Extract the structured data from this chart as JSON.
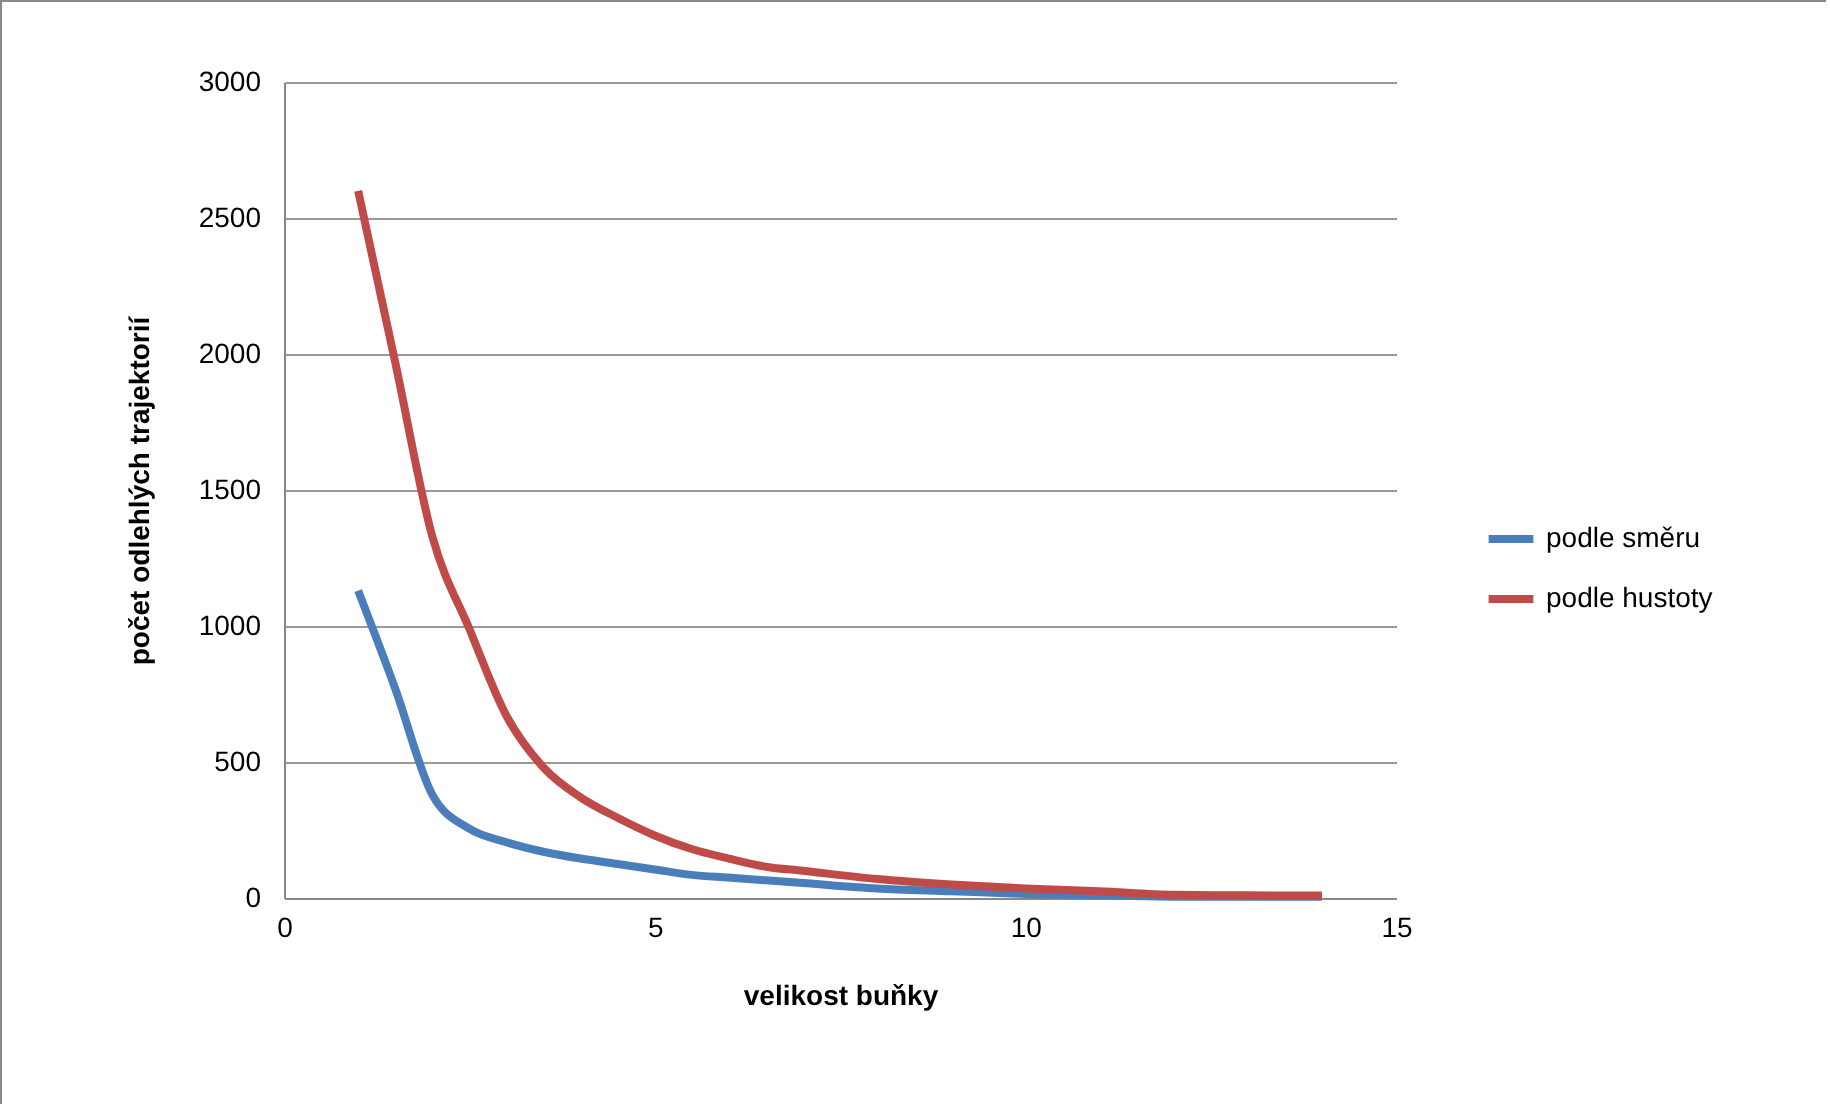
{
  "chart_data": {
    "type": "line",
    "xlabel": "velikost buňky",
    "ylabel": "počet odlehlých trajektorií",
    "x": [
      1,
      1.5,
      2,
      2.5,
      3,
      3.5,
      4,
      4.5,
      5,
      5.5,
      6,
      6.5,
      7,
      8,
      9,
      10,
      11,
      12,
      13,
      14
    ],
    "series": [
      {
        "name": "podle směru",
        "color": "#4a7ebb",
        "values": [
          1130,
          770,
          380,
          255,
          205,
          170,
          145,
          125,
          105,
          85,
          75,
          65,
          55,
          35,
          25,
          15,
          10,
          5,
          5,
          5
        ]
      },
      {
        "name": "podle hustoty",
        "color": "#be4b48",
        "values": [
          2600,
          1970,
          1330,
          990,
          670,
          480,
          370,
          295,
          230,
          180,
          145,
          115,
          100,
          70,
          50,
          35,
          25,
          12,
          10,
          9
        ]
      }
    ],
    "xlim": [
      0,
      15
    ],
    "xticks": [
      0,
      5,
      10,
      15
    ],
    "ylim": [
      0,
      3000
    ],
    "yticks": [
      0,
      500,
      1000,
      1500,
      2000,
      2500,
      3000
    ],
    "grid": "y",
    "legend": "right",
    "marker": "none",
    "line_style": "solid"
  }
}
